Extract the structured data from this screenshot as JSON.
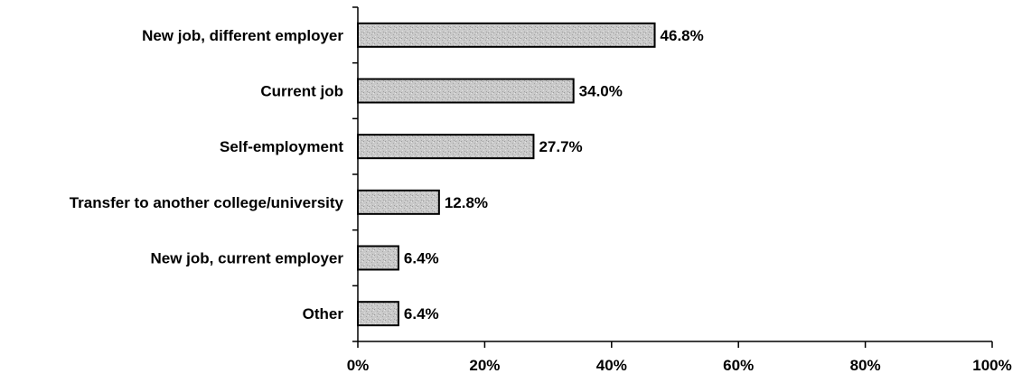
{
  "chart_data": {
    "type": "bar",
    "orientation": "horizontal",
    "categories": [
      "New job, different employer",
      "Current job",
      "Self-employment",
      "Transfer to another college/university",
      "New job, current employer",
      "Other"
    ],
    "values": [
      46.8,
      34.0,
      27.7,
      12.8,
      6.4,
      6.4
    ],
    "value_labels": [
      "46.8%",
      "34.0%",
      "27.7%",
      "12.8%",
      "6.4%",
      "6.4%"
    ],
    "xlim": [
      0,
      100
    ],
    "x_ticks": [
      0,
      20,
      40,
      60,
      80,
      100
    ],
    "x_tick_labels": [
      "0%",
      "20%",
      "40%",
      "60%",
      "80%",
      "100%"
    ],
    "title": "",
    "xlabel": "",
    "ylabel": "",
    "grid": false,
    "bar_color": "#c8c8c8",
    "bar_edge_color": "#000000"
  }
}
